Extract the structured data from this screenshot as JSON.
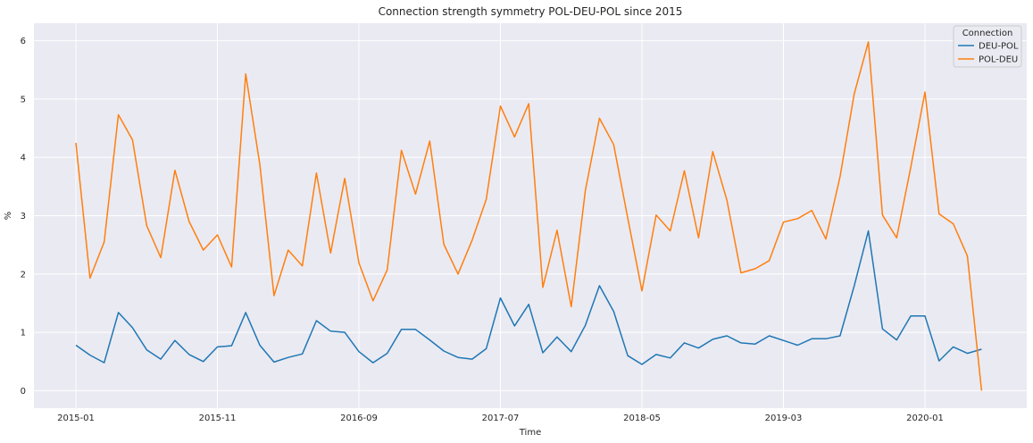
{
  "chart_data": {
    "type": "line",
    "title": "Connection strength symmetry POL-DEU-POL since 2015",
    "xlabel": "Time",
    "ylabel": "%",
    "x_start": "2015-01",
    "x_step_months": 1,
    "x_ticks": [
      "2015-01",
      "2015-11",
      "2016-09",
      "2017-07",
      "2018-05",
      "2019-03",
      "2020-01"
    ],
    "y_ticks": [
      0,
      1,
      2,
      3,
      4,
      5,
      6
    ],
    "ylim": [
      -0.3,
      6.3
    ],
    "grid": true,
    "legend": {
      "title": "Connection",
      "placement": "top-right",
      "entries": [
        "DEU-POL",
        "POL-DEU"
      ]
    },
    "series": [
      {
        "name": "DEU-POL",
        "color": "#1f77b4",
        "values": [
          0.78,
          0.61,
          0.48,
          1.34,
          1.08,
          0.7,
          0.54,
          0.86,
          0.62,
          0.5,
          0.75,
          0.77,
          1.34,
          0.78,
          0.49,
          0.57,
          0.63,
          1.2,
          1.02,
          1.0,
          0.67,
          0.48,
          0.64,
          1.05,
          1.05,
          0.87,
          0.68,
          0.57,
          0.54,
          0.72,
          1.59,
          1.11,
          1.48,
          0.65,
          0.92,
          0.67,
          1.12,
          1.8,
          1.36,
          0.6,
          0.45,
          0.62,
          0.56,
          0.82,
          0.73,
          0.88,
          0.94,
          0.82,
          0.8,
          0.94,
          0.86,
          0.78,
          0.89,
          0.89,
          0.94,
          1.8,
          2.74,
          1.06,
          0.87,
          1.28,
          1.28,
          0.51,
          0.75,
          0.64,
          0.71
        ]
      },
      {
        "name": "POL-DEU",
        "color": "#ff7f0e",
        "values": [
          4.25,
          1.93,
          2.55,
          4.73,
          4.3,
          2.83,
          2.28,
          3.78,
          2.9,
          2.41,
          2.67,
          2.12,
          5.43,
          3.88,
          1.63,
          2.41,
          2.14,
          3.73,
          2.36,
          3.64,
          2.19,
          1.54,
          2.07,
          4.12,
          3.37,
          4.28,
          2.51,
          2.0,
          2.58,
          3.28,
          4.88,
          4.35,
          4.92,
          1.77,
          2.75,
          1.44,
          3.43,
          4.67,
          4.22,
          2.96,
          1.71,
          3.01,
          2.74,
          3.77,
          2.62,
          4.1,
          3.27,
          2.02,
          2.09,
          2.23,
          2.89,
          2.95,
          3.09,
          2.6,
          3.67,
          5.09,
          5.98,
          3.01,
          2.62,
          3.83,
          5.12,
          3.03,
          2.86,
          2.31,
          0.0
        ]
      }
    ]
  }
}
